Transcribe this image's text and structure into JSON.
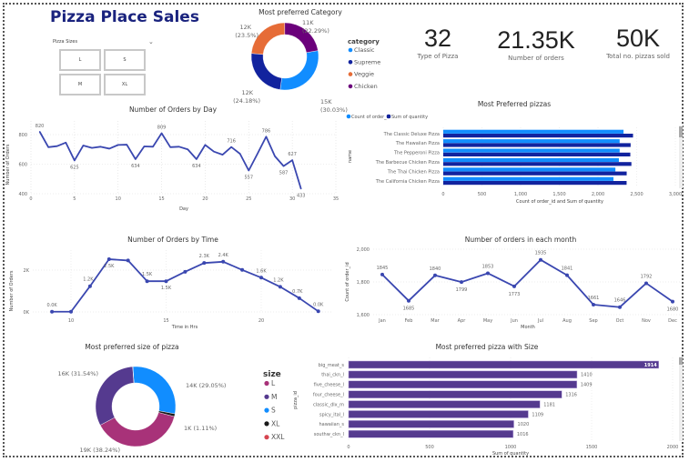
{
  "header": {
    "title": "Pizza Place Sales"
  },
  "slicer": {
    "label": "Pizza Sizes",
    "options": [
      "L",
      "S",
      "M",
      "XL"
    ]
  },
  "kpis": [
    {
      "value": "32",
      "label": "Type of Pizza"
    },
    {
      "value": "21.35K",
      "label": "Number of orders"
    },
    {
      "value": "50K",
      "label": "Total no. pizzas sold"
    }
  ],
  "colors": {
    "line": "#3a47b0",
    "classic": "#118dff",
    "supreme": "#12239e",
    "veggie": "#e66c37",
    "chicken": "#6b007b",
    "size_bar": "#553a8f"
  },
  "chart_data": [
    {
      "type": "pie",
      "variant": "donut",
      "title": "Most preferred Category",
      "legend_title": "category",
      "legend": "right",
      "slices": [
        {
          "name": "Classic",
          "value_label": "15K",
          "percent": 30.03,
          "pct_label": "(30.03%)",
          "color": "#118dff"
        },
        {
          "name": "Supreme",
          "value_label": "12K",
          "percent": 24.18,
          "pct_label": "(24.18%)",
          "color": "#12239e"
        },
        {
          "name": "Veggie",
          "value_label": "12K",
          "percent": 23.5,
          "pct_label": "(23.5%)",
          "color": "#e66c37"
        },
        {
          "name": "Chicken",
          "value_label": "11K",
          "percent": 22.29,
          "pct_label": "(22.29%)",
          "color": "#6b007b"
        }
      ]
    },
    {
      "type": "line",
      "title": "Number of Orders by Day",
      "xlabel": "Day",
      "ylabel": "Number of Orders",
      "xlim": [
        0,
        35
      ],
      "ylim": [
        400,
        800
      ],
      "grid": true,
      "xticks": [
        0,
        5,
        10,
        15,
        20,
        25,
        30,
        35
      ],
      "yticks": [
        400,
        600,
        800
      ],
      "x": [
        1,
        2,
        3,
        4,
        5,
        6,
        7,
        8,
        9,
        10,
        11,
        12,
        13,
        14,
        15,
        16,
        17,
        18,
        19,
        20,
        21,
        22,
        23,
        24,
        25,
        26,
        27,
        28,
        29,
        30,
        31
      ],
      "y": [
        820,
        715,
        722,
        746,
        625,
        726,
        710,
        718,
        705,
        730,
        732,
        634,
        720,
        718,
        809,
        715,
        718,
        700,
        634,
        730,
        685,
        664,
        716,
        670,
        557,
        670,
        786,
        654,
        587,
        627,
        433
      ],
      "data_labels": {
        "1": "820",
        "5": "625",
        "12": "634",
        "15": "809",
        "19": "634",
        "23": "716",
        "25": "557",
        "27": "786",
        "29": "587",
        "30": "627",
        "31": "433"
      }
    },
    {
      "type": "bar",
      "orientation": "horizontal",
      "title": "Most Preferred pizzas",
      "xlabel": "Count of order_id and Sum of quantity",
      "ylabel": "name",
      "xlim": [
        0,
        3000
      ],
      "legend": "top-left",
      "xticks": [
        "0",
        "500",
        "1,000",
        "1,500",
        "2,000",
        "2,500",
        "3,000"
      ],
      "categories": [
        "The Classic Deluxe Pizza",
        "The Hawaiian Pizza",
        "The Pepperoni Pizza",
        "The Barbecue Chicken Pizza",
        "The Thai Chicken Pizza",
        "The California Chicken Pizza"
      ],
      "series": [
        {
          "name": "Count of order_id",
          "color": "#118dff",
          "values": [
            2330,
            2280,
            2280,
            2270,
            2225,
            2200
          ]
        },
        {
          "name": "Sum of quantity",
          "color": "#12239e",
          "values": [
            2453,
            2422,
            2418,
            2432,
            2371,
            2370
          ]
        }
      ]
    },
    {
      "type": "line",
      "title": "Number of Orders by Time",
      "xlabel": "Time in Hrs",
      "ylabel": "Number of Orders",
      "ylim": [
        0,
        2700
      ],
      "grid": true,
      "markers": true,
      "xticks": [
        10,
        15,
        20
      ],
      "yticks": [
        {
          "v": 0,
          "label": "0K"
        },
        {
          "v": 2000,
          "label": "2K"
        }
      ],
      "x": [
        9,
        10,
        11,
        12,
        13,
        14,
        15,
        16,
        17,
        18,
        19,
        20,
        21,
        22,
        23
      ],
      "y": [
        10,
        10,
        1230,
        2520,
        2460,
        1470,
        1470,
        1920,
        2340,
        2400,
        2010,
        1640,
        1200,
        660,
        30
      ],
      "data_labels": {
        "9": "0.0K",
        "11": "1.2K",
        "12": "2.5K",
        "14": "1.5K",
        "15": "1.5K",
        "17": "2.3K",
        "18": "2.4K",
        "20": "1.6K",
        "21": "1.2K",
        "22": "0.7K",
        "23": "0.0K"
      }
    },
    {
      "type": "line",
      "title": "Number of orders in each month",
      "xlabel": "Month",
      "ylabel": "Count of order_id",
      "ylim": [
        1600,
        2000
      ],
      "grid": true,
      "markers": true,
      "yticks": [
        {
          "v": 1600,
          "label": "1,600"
        },
        {
          "v": 1800,
          "label": "1,800"
        },
        {
          "v": 2000,
          "label": "2,000"
        }
      ],
      "categories": [
        "Jan",
        "Feb",
        "Mar",
        "Apr",
        "May",
        "Jun",
        "Jul",
        "Aug",
        "Sep",
        "Oct",
        "Nov",
        "Dec"
      ],
      "y": [
        1845,
        1685,
        1840,
        1799,
        1853,
        1773,
        1935,
        1841,
        1661,
        1646,
        1792,
        1680
      ]
    },
    {
      "type": "pie",
      "variant": "donut",
      "title": "Most preferred size of pizza",
      "legend_title": "size",
      "legend": "right",
      "slices": [
        {
          "name": "S",
          "label": "14K (29.05%)",
          "percent": 29.05,
          "color": "#118dff"
        },
        {
          "name": "XL",
          "label": "1K (1.11%)",
          "percent": 1.11,
          "color": "#1a1a1a"
        },
        {
          "name": "L",
          "label": "19K (38.24%)",
          "percent": 38.24,
          "color": "#a83279"
        },
        {
          "name": "M",
          "label": "16K (31.54%)",
          "percent": 31.54,
          "color": "#553a8f"
        },
        {
          "name": "XXL",
          "label": "",
          "percent": 0.06,
          "color": "#d64550"
        }
      ],
      "legend_order": [
        "L",
        "M",
        "S",
        "XL",
        "XXL"
      ]
    },
    {
      "type": "bar",
      "orientation": "horizontal",
      "title": "Most preferred pizza with Size",
      "xlabel": "Sum of quantity",
      "ylabel": "pizza_id",
      "xlim": [
        0,
        2000
      ],
      "xticks": [
        "0",
        "500",
        "1000",
        "1500",
        "2000"
      ],
      "categories": [
        "big_meat_s",
        "thai_ckn_l",
        "five_cheese_l",
        "four_cheese_l",
        "classic_dlx_m",
        "spicy_ital_l",
        "hawaiian_s",
        "southw_ckn_l"
      ],
      "values": [
        1914,
        1410,
        1409,
        1316,
        1181,
        1109,
        1020,
        1016
      ]
    }
  ]
}
